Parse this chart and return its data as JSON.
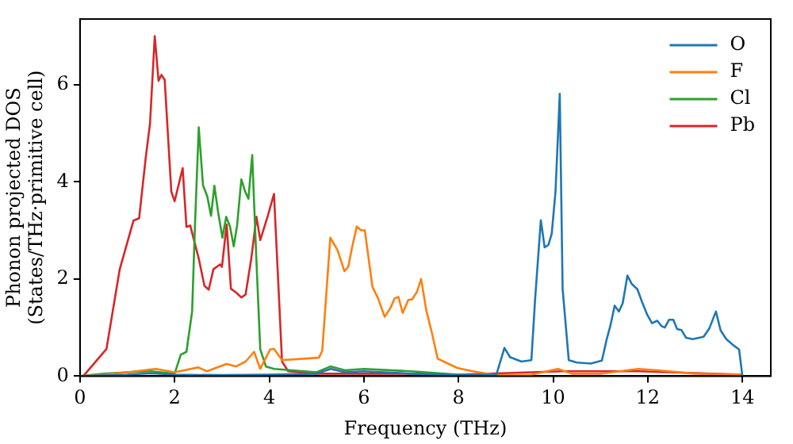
{
  "chart_data": {
    "type": "line",
    "xlabel": "Frequency (THz)",
    "ylabel": "Phonon projected DOS\n(States/THz·primitive cell)",
    "xlim": [
      0,
      14.6
    ],
    "ylim": [
      0,
      7.35
    ],
    "xticks": [
      0,
      2,
      4,
      6,
      8,
      10,
      12,
      14
    ],
    "yticks": [
      0,
      2,
      4,
      6
    ],
    "grid": false,
    "legend": "top right",
    "series": [
      {
        "name": "O",
        "color": "#1f77b4",
        "x": [
          0,
          1,
          1.5,
          2,
          3,
          4,
          5,
          5.3,
          5.6,
          6,
          7,
          8,
          8.8,
          8.97,
          9.09,
          9.33,
          9.54,
          9.62,
          9.74,
          9.82,
          9.9,
          9.97,
          10.05,
          10.14,
          10.2,
          10.33,
          10.5,
          10.8,
          11.03,
          11.13,
          11.21,
          11.3,
          11.39,
          11.47,
          11.57,
          11.66,
          11.78,
          11.87,
          11.99,
          12.09,
          12.2,
          12.29,
          12.36,
          12.45,
          12.54,
          12.62,
          12.71,
          12.81,
          12.95,
          13.18,
          13.3,
          13.44,
          13.54,
          13.66,
          13.83,
          13.93,
          14.0
        ],
        "values": [
          0,
          0.03,
          0.06,
          0.03,
          0.02,
          0.03,
          0.05,
          0.15,
          0.08,
          0.1,
          0.05,
          0.02,
          0.03,
          0.58,
          0.39,
          0.3,
          0.33,
          1.6,
          3.21,
          2.65,
          2.7,
          2.93,
          3.8,
          5.81,
          1.8,
          0.33,
          0.28,
          0.26,
          0.32,
          0.75,
          1.04,
          1.45,
          1.33,
          1.5,
          2.07,
          1.9,
          1.79,
          1.55,
          1.26,
          1.09,
          1.14,
          1.03,
          1.0,
          1.16,
          1.16,
          0.97,
          0.95,
          0.79,
          0.76,
          0.81,
          0.98,
          1.33,
          0.94,
          0.76,
          0.62,
          0.55,
          0
        ]
      },
      {
        "name": "F",
        "color": "#ff7f0e",
        "x": [
          0,
          0.5,
          1,
          1.6,
          2,
          2.5,
          2.68,
          3.1,
          3.3,
          3.5,
          3.68,
          3.81,
          4.02,
          4.1,
          4.27,
          5.05,
          5.12,
          5.29,
          5.44,
          5.59,
          5.67,
          5.75,
          5.85,
          5.94,
          6.02,
          6.18,
          6.3,
          6.44,
          6.56,
          6.65,
          6.73,
          6.82,
          6.94,
          7.02,
          7.12,
          7.21,
          7.32,
          7.44,
          7.56,
          7.73,
          7.97,
          8.3,
          8.8,
          9.5,
          10.1,
          10.4,
          11,
          11.8,
          12.2,
          13,
          14
        ],
        "values": [
          0,
          0.03,
          0.08,
          0.15,
          0.08,
          0.18,
          0.1,
          0.25,
          0.2,
          0.3,
          0.5,
          0.15,
          0.55,
          0.56,
          0.33,
          0.38,
          0.52,
          2.85,
          2.6,
          2.16,
          2.25,
          2.65,
          3.08,
          3.0,
          3.0,
          1.84,
          1.6,
          1.22,
          1.4,
          1.6,
          1.63,
          1.3,
          1.57,
          1.58,
          1.73,
          2.0,
          1.35,
          0.88,
          0.36,
          0.28,
          0.17,
          0.1,
          0.02,
          0.02,
          0.15,
          0.05,
          0.05,
          0.15,
          0.12,
          0.05,
          0.03
        ]
      },
      {
        "name": "Cl",
        "color": "#2ca02c",
        "x": [
          0,
          0.5,
          1,
          1.5,
          2.0,
          2.13,
          2.25,
          2.37,
          2.43,
          2.51,
          2.6,
          2.69,
          2.77,
          2.84,
          2.92,
          3.01,
          3.09,
          3.17,
          3.25,
          3.32,
          3.41,
          3.49,
          3.56,
          3.64,
          3.72,
          3.81,
          3.93,
          4.1,
          5,
          5.3,
          5.6,
          6,
          7,
          8,
          9
        ],
        "values": [
          0,
          0.05,
          0.08,
          0.1,
          0.05,
          0.44,
          0.5,
          1.33,
          3.1,
          5.12,
          3.93,
          3.7,
          3.3,
          3.92,
          3.37,
          2.85,
          3.28,
          3.08,
          2.67,
          3.1,
          4.05,
          3.8,
          3.65,
          4.55,
          2.58,
          0.55,
          0.2,
          0.15,
          0.08,
          0.2,
          0.12,
          0.15,
          0.1,
          0.03,
          0
        ]
      },
      {
        "name": "Pb",
        "color": "#d62728",
        "x": [
          0,
          0.07,
          0.56,
          0.84,
          1.13,
          1.25,
          1.39,
          1.48,
          1.58,
          1.66,
          1.72,
          1.79,
          1.93,
          2.0,
          2.17,
          2.25,
          2.33,
          2.51,
          2.63,
          2.72,
          2.82,
          2.96,
          3.0,
          3.1,
          3.19,
          3.3,
          3.41,
          3.5,
          3.62,
          3.73,
          3.81,
          3.97,
          4.1,
          4.22,
          4.27,
          4.4,
          5,
          7,
          8,
          10.2,
          11.8,
          14
        ],
        "values": [
          0,
          0,
          0.56,
          2.2,
          3.2,
          3.25,
          4.5,
          5.2,
          7.0,
          6.08,
          6.2,
          6.1,
          3.8,
          3.6,
          4.28,
          3.07,
          3.1,
          2.42,
          1.86,
          1.78,
          2.2,
          2.3,
          2.25,
          3.12,
          1.8,
          1.72,
          1.62,
          1.68,
          2.42,
          3.28,
          2.8,
          3.3,
          3.75,
          1.33,
          0.3,
          0.1,
          0.05,
          0.05,
          0.03,
          0.1,
          0.1,
          0.03
        ]
      }
    ]
  }
}
